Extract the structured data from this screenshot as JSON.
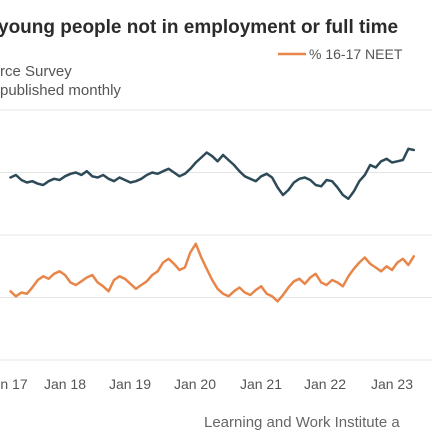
{
  "chart_data": {
    "type": "line",
    "title": "young people not in employment or full time",
    "subtitle_lines": [
      "rce Survey",
      "published monthly"
    ],
    "source": "Learning and Work Institute a",
    "legend_position": "top-right",
    "grid": true,
    "ylim": [
      5,
      25
    ],
    "x_tick_labels": [
      "n 17",
      "Jan 18",
      "Jan 19",
      "Jan 20",
      "Jan 21",
      "Jan 22",
      "Jan 23"
    ],
    "series": [
      {
        "name": "",
        "color": "#2e4a58",
        "values": [
          19.6,
          19.8,
          19.4,
          19.2,
          19.3,
          19.1,
          19.0,
          19.3,
          19.5,
          19.4,
          19.7,
          19.9,
          20.0,
          19.8,
          20.1,
          19.7,
          19.6,
          19.8,
          19.5,
          19.3,
          19.6,
          19.4,
          19.2,
          19.3,
          19.5,
          19.8,
          20.0,
          19.9,
          20.1,
          20.3,
          20.0,
          19.7,
          19.9,
          20.3,
          20.8,
          21.2,
          21.6,
          21.3,
          20.9,
          21.4,
          21.0,
          20.6,
          20.1,
          19.7,
          19.5,
          19.3,
          19.7,
          19.9,
          19.6,
          18.8,
          18.2,
          18.6,
          19.2,
          19.5,
          19.6,
          19.4,
          19.0,
          18.9,
          19.4,
          19.3,
          18.8,
          18.2,
          17.9,
          18.5,
          19.3,
          19.8,
          20.6,
          20.4,
          20.9,
          21.1,
          20.8,
          20.9,
          21.0,
          21.9,
          21.8
        ]
      },
      {
        "name": "% 16-17 NEET",
        "color": "#e8864a",
        "values": [
          10.5,
          10.1,
          10.4,
          10.3,
          10.8,
          11.4,
          11.7,
          11.5,
          11.9,
          12.1,
          11.8,
          11.2,
          11.0,
          11.3,
          11.6,
          11.8,
          11.2,
          10.9,
          10.5,
          11.4,
          11.7,
          11.5,
          11.1,
          10.7,
          11.0,
          11.3,
          11.8,
          12.1,
          12.8,
          13.1,
          12.7,
          12.2,
          12.4,
          13.6,
          14.3,
          13.2,
          12.3,
          11.4,
          10.7,
          10.3,
          10.1,
          10.5,
          10.8,
          10.4,
          10.2,
          10.6,
          10.9,
          10.3,
          10.1,
          9.7,
          10.2,
          10.8,
          11.3,
          11.5,
          11.1,
          11.6,
          11.9,
          11.2,
          11.0,
          11.4,
          11.2,
          10.9,
          11.7,
          12.3,
          12.8,
          13.2,
          12.7,
          12.4,
          12.1,
          12.5,
          12.2,
          12.8,
          13.1,
          12.6,
          13.3
        ]
      }
    ]
  }
}
